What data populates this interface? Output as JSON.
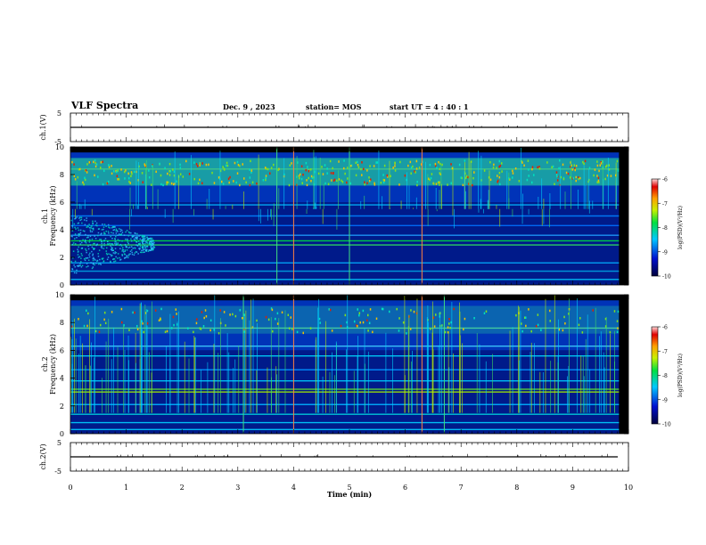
{
  "header": {
    "title": "VLF Spectra",
    "date": "Dec. 9 , 2023",
    "station": "station= MOS",
    "start": "start UT = 4 : 40 : 1"
  },
  "chart_data": [
    {
      "type": "line",
      "name": "ch1-waveform",
      "ylabel": "ch.1(V)",
      "ylim": [
        -5,
        5
      ],
      "yticks": [
        "5",
        "-5"
      ],
      "xlim": [
        0,
        10
      ],
      "series": [
        {
          "values_note": "",
          "level": 0
        }
      ]
    },
    {
      "type": "heatmap",
      "name": "ch1-spectrogram",
      "ylabel_top": "ch.1",
      "ylabel": "Frequency (kHz)",
      "ylim": [
        0,
        10
      ],
      "yticks": [
        0,
        2,
        4,
        6,
        8,
        10
      ],
      "xlim": [
        0,
        9.83
      ],
      "colorbar": {
        "label": "log(PSD)(V²/Hz)",
        "min": -10,
        "max": -6,
        "ticks": [
          "-6",
          "-7",
          "-8",
          "-9",
          "-10"
        ]
      }
    },
    {
      "type": "heatmap",
      "name": "ch2-spectrogram",
      "ylabel_top": "ch.2",
      "ylabel": "Frequency (kHz)",
      "ylim": [
        0,
        10
      ],
      "yticks": [
        0,
        2,
        4,
        6,
        8,
        10
      ],
      "xlim": [
        0,
        9.83
      ],
      "colorbar": {
        "label": "log(PSD)(V²/Hz)",
        "min": -10,
        "max": -6,
        "ticks": [
          "-6",
          "-7",
          "-8",
          "-9",
          "-10"
        ]
      }
    },
    {
      "type": "line",
      "name": "ch2-waveform",
      "ylabel": "ch.2(V)",
      "ylim": [
        -5,
        5
      ],
      "yticks": [
        "5",
        "-5"
      ],
      "xlim": [
        0,
        10
      ],
      "series": [
        {
          "level": 0
        }
      ]
    }
  ],
  "xaxis": {
    "label": "Time (min)",
    "ticks": [
      "0",
      "1",
      "2",
      "3",
      "4",
      "5",
      "6",
      "7",
      "8",
      "9",
      "10"
    ],
    "range": [
      0,
      10
    ]
  },
  "colors": {
    "background": "#000000",
    "colormap": [
      "#00003c",
      "#0010d0",
      "#00c8ff",
      "#00e040",
      "#c8f000",
      "#ffa000",
      "#e00000",
      "#ffd8d8"
    ]
  }
}
